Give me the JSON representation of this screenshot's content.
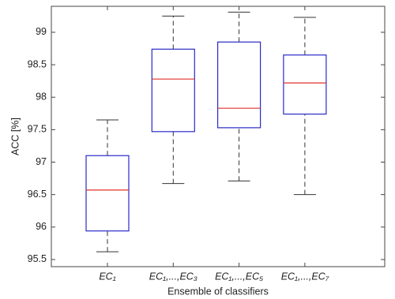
{
  "chart_data": {
    "type": "box",
    "xlabel": "Ensemble of classifiers",
    "ylabel": "ACC [%]",
    "categories": [
      "EC₁",
      "EC₁,...,EC₃",
      "EC₁,...,EC₅",
      "EC₁,...,EC₇"
    ],
    "boxes": [
      {
        "whislo": 95.62,
        "q1": 95.94,
        "med": 96.57,
        "q3": 97.1,
        "whishi": 97.65
      },
      {
        "whislo": 96.67,
        "q1": 97.47,
        "med": 98.28,
        "q3": 98.74,
        "whishi": 99.25
      },
      {
        "whislo": 96.71,
        "q1": 97.53,
        "med": 97.83,
        "q3": 98.85,
        "whishi": 99.31
      },
      {
        "whislo": 96.5,
        "q1": 97.74,
        "med": 98.22,
        "q3": 98.65,
        "whishi": 99.23
      }
    ],
    "box_color": "#2a2ac8",
    "median_color": "#e0302a",
    "whisker_color": "#333333",
    "ylim": [
      95.39,
      99.4
    ],
    "yticks": [
      95.5,
      96,
      96.5,
      97,
      97.5,
      98,
      98.5,
      99
    ]
  }
}
